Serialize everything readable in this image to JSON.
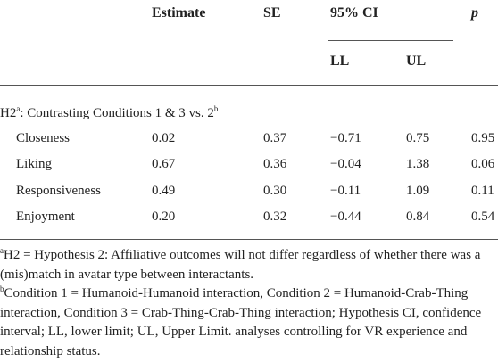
{
  "table": {
    "header": [
      "Estimate",
      "SE",
      "95% CI",
      "p"
    ],
    "subheader": [
      "LL",
      "UL"
    ],
    "section": {
      "label": "H2",
      "sup1": "a",
      "text": ": Contrasting Conditions 1 & 3 vs. 2",
      "sup2": "b"
    },
    "rows": [
      [
        "Closeness",
        "0.02",
        "0.37",
        "−0.71",
        "0.75",
        "0.95"
      ],
      [
        "Liking",
        "0.67",
        "0.36",
        "−0.04",
        "1.38",
        "0.06"
      ],
      [
        "Responsiveness",
        "0.49",
        "0.30",
        "−0.11",
        "1.09",
        "0.11"
      ],
      [
        "Enjoyment",
        "0.20",
        "0.32",
        "−0.44",
        "0.84",
        "0.54"
      ]
    ]
  },
  "footnotes": [
    {
      "mark": "a",
      "text": "H2 = Hypothesis 2: Affiliative outcomes will not differ regardless of whether there was a (mis)match in avatar type between interactants."
    },
    {
      "mark": "b",
      "text": "Condition 1 = Humanoid-Humanoid interaction, Condition 2 = Humanoid-Crab-Thing interaction, Condition 3 = Crab-Thing-Crab-Thing interaction; Hypothesis CI, confidence interval; LL, lower limit; UL, Upper Limit. analyses controlling for VR experience and relationship status."
    }
  ]
}
